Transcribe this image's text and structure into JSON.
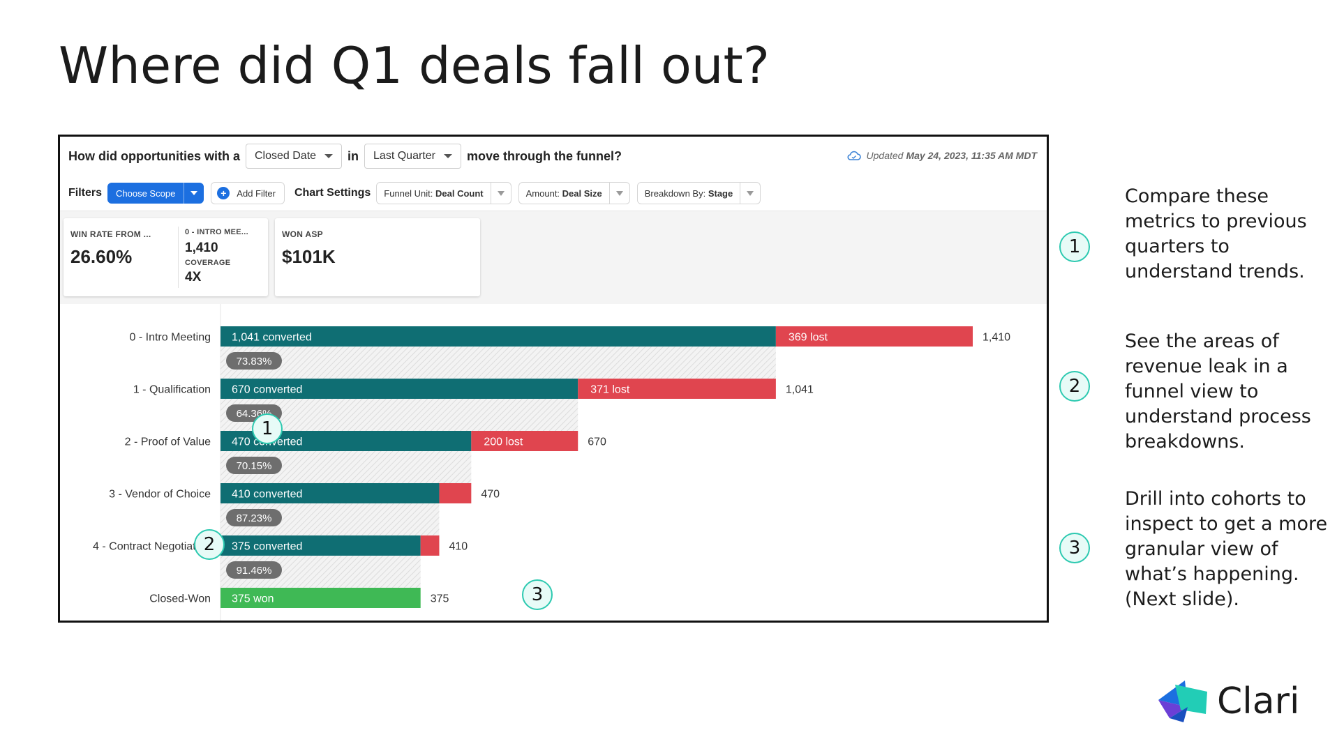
{
  "slide": {
    "title": "Where did Q1 deals fall out?",
    "logo_text": "Clari"
  },
  "query_bar": {
    "prefix": "How did opportunities with a",
    "date_field": "Closed Date",
    "in_label": "in",
    "period": "Last Quarter",
    "suffix": "move through the funnel?",
    "updated_prefix": "Updated",
    "updated_time": "May 24, 2023, 11:35 AM MDT"
  },
  "filter_bar": {
    "filters_label": "Filters",
    "choose_scope": "Choose Scope",
    "add_filter": "Add Filter",
    "chart_settings_label": "Chart Settings",
    "funnel_unit_label": "Funnel Unit:",
    "funnel_unit_value": "Deal Count",
    "amount_label": "Amount:",
    "amount_value": "Deal Size",
    "breakdown_label": "Breakdown By:",
    "breakdown_value": "Stage"
  },
  "metrics": {
    "win_rate_label": "WIN RATE FROM ...",
    "win_rate_value": "26.60%",
    "intro_label": "0 - INTRO MEE...",
    "intro_value": "1,410",
    "coverage_label": "COVERAGE",
    "coverage_value": "4X",
    "won_asp_label": "WON ASP",
    "won_asp_value": "$101K"
  },
  "callouts": [
    "1",
    "2",
    "3"
  ],
  "side_notes": [
    "Compare these metrics to previous quarters to understand trends.",
    "See the areas of revenue leak in a funnel view to understand process breakdowns.",
    "Drill into cohorts to inspect to get a more granular view of what’s happening. (Next slide)."
  ],
  "colors": {
    "converted": "#0f6e73",
    "lost": "#e0454f",
    "won": "#3fb955",
    "pill": "#6e6e6e",
    "callout_border": "#2cc9b0",
    "accent_blue": "#1c6fe0"
  },
  "chart_data": {
    "type": "bar",
    "orientation": "horizontal-stacked-funnel",
    "categories": [
      "0 - Intro Meeting",
      "1 - Qualification",
      "2 - Proof of Value",
      "3 - Vendor of Choice",
      "4 - Contract Negotiation",
      "Closed-Won"
    ],
    "series": [
      {
        "name": "converted",
        "values": [
          1041,
          670,
          470,
          410,
          375,
          375
        ]
      },
      {
        "name": "lost",
        "values": [
          369,
          371,
          200,
          60,
          35,
          0
        ]
      }
    ],
    "totals": [
      1410,
      1041,
      670,
      470,
      410,
      375
    ],
    "bar_labels": [
      {
        "converted": "1,041 converted",
        "lost": "369 lost",
        "total": "1,410"
      },
      {
        "converted": "670 converted",
        "lost": "371 lost",
        "total": "1,041"
      },
      {
        "converted": "470 converted",
        "lost": "200 lost",
        "total": "670"
      },
      {
        "converted": "410 converted",
        "lost": "",
        "total": "470"
      },
      {
        "converted": "375 converted",
        "lost": "",
        "total": "410"
      },
      {
        "converted": "375 won",
        "lost": "",
        "total": "375"
      }
    ],
    "conversion_rates": [
      "73.83%",
      "64.36%",
      "70.15%",
      "87.23%",
      "91.46%"
    ],
    "xlim": [
      0,
      1410
    ],
    "grid": false,
    "legend": "none"
  }
}
